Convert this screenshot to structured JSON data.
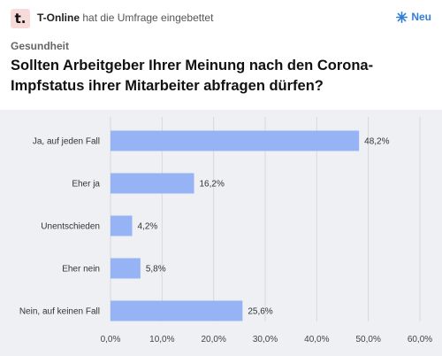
{
  "header": {
    "logo_text": "t.",
    "publisher": "T-Online",
    "embed_text": "hat die Umfrage eingebettet",
    "new_label": "Neu",
    "new_icon": "sparkle-icon",
    "accent_color": "#2f7fd6"
  },
  "poll": {
    "category": "Gesundheit",
    "question": "Sollten Arbeitgeber Ihrer Meinung nach den Corona-Impfstatus ihrer Mitarbeiter abfragen dürfen?"
  },
  "chart_data": {
    "type": "bar",
    "orientation": "horizontal",
    "categories": [
      "Ja, auf jeden Fall",
      "Eher ja",
      "Unentschieden",
      "Eher nein",
      "Nein, auf keinen Fall"
    ],
    "values": [
      48.2,
      16.2,
      4.2,
      5.8,
      25.6
    ],
    "value_labels": [
      "48,2%",
      "16,2%",
      "4,2%",
      "5,8%",
      "25,6%"
    ],
    "xlim": [
      0,
      60
    ],
    "ticks": [
      0,
      10,
      20,
      30,
      40,
      50,
      60
    ],
    "tick_labels": [
      "0,0%",
      "10,0%",
      "20,0%",
      "30,0%",
      "40,0%",
      "50,0%",
      "60,0%"
    ],
    "grid": true,
    "bar_color": "#96b4f5",
    "background_color": "#eef0f3"
  }
}
